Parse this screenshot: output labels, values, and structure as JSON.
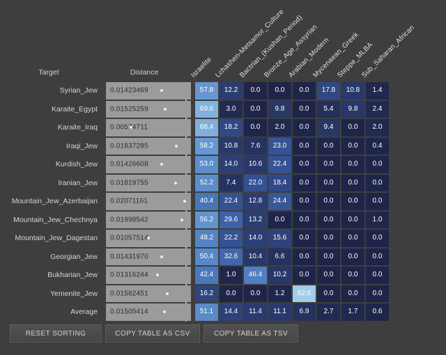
{
  "header": {
    "target": "Target",
    "distance": "Distance"
  },
  "buttons": [
    {
      "label": "RESET SORTING"
    },
    {
      "label": "COPY TABLE AS CSV"
    },
    {
      "label": "COPY TABLE AS TSV"
    }
  ],
  "colors": {
    "background": "#3e3e3e",
    "distance_bar": "#9b9b9b",
    "distance_text": "#2d2d2d",
    "row_label_text": "#d4d4d4",
    "cell_text": "#ffffff",
    "header_text": "#e0e0e0",
    "marker_line": "#d9d9d9"
  },
  "chart_data": {
    "type": "heatmap",
    "title": "",
    "columns": [
      "Israelite",
      "Lchashen-Metsamor_Culture",
      "Bactrian_(Kushan_Period)",
      "Bronze_Age_Assyrian",
      "Arabian_Modern",
      "Mycenaean_Greek",
      "Steppe_MLBA",
      "Sub_Saharan_African"
    ],
    "rows": [
      "Syrian_Jew",
      "Karaite_Egypt",
      "Karaite_Iraq",
      "Iraqi_Jew",
      "Kurdish_Jew",
      "Iranian_Jew",
      "Mountain_Jew_Azerbaijan",
      "Mountain_Jew_Chechnya",
      "Mountain_Jew_Dagestan",
      "Georgian_Jew",
      "Bukharian_Jew",
      "Yemenite_Jew",
      "Average"
    ],
    "distances": [
      "0.01423469",
      "0.01525259",
      "0.00574711",
      "0.01837285",
      "0.01426608",
      "0.01819755",
      "0.02071161",
      "0.01998542",
      "0.01057514",
      "0.01431970",
      "0.01316244",
      "0.01582451",
      "0.01505414"
    ],
    "values": [
      [
        57.8,
        12.2,
        0.0,
        0.0,
        0.0,
        17.8,
        10.8,
        1.4
      ],
      [
        69.6,
        3.0,
        0.0,
        9.8,
        0.0,
        5.4,
        9.8,
        2.4
      ],
      [
        68.4,
        18.2,
        0.0,
        2.0,
        0.0,
        9.4,
        0.0,
        2.0
      ],
      [
        58.2,
        10.8,
        7.6,
        23.0,
        0.0,
        0.0,
        0.0,
        0.4
      ],
      [
        53.0,
        14.0,
        10.6,
        22.4,
        0.0,
        0.0,
        0.0,
        0.0
      ],
      [
        52.2,
        7.4,
        22.0,
        18.4,
        0.0,
        0.0,
        0.0,
        0.0
      ],
      [
        40.4,
        22.4,
        12.8,
        24.4,
        0.0,
        0.0,
        0.0,
        0.0
      ],
      [
        56.2,
        29.6,
        13.2,
        0.0,
        0.0,
        0.0,
        0.0,
        1.0
      ],
      [
        48.2,
        22.2,
        14.0,
        15.6,
        0.0,
        0.0,
        0.0,
        0.0
      ],
      [
        50.4,
        32.6,
        10.4,
        6.6,
        0.0,
        0.0,
        0.0,
        0.0
      ],
      [
        42.4,
        1.0,
        46.4,
        10.2,
        0.0,
        0.0,
        0.0,
        0.0
      ],
      [
        16.2,
        0.0,
        0.0,
        1.2,
        82.6,
        0.0,
        0.0,
        0.0
      ],
      [
        51.1,
        14.4,
        11.4,
        11.1,
        6.9,
        2.7,
        1.7,
        0.6
      ]
    ],
    "value_range": [
      0,
      100
    ],
    "colorscale": [
      [
        0,
        "#1f2548"
      ],
      [
        10,
        "#283769"
      ],
      [
        20,
        "#324d8c"
      ],
      [
        30,
        "#3e63a8"
      ],
      [
        45,
        "#4e7dc0"
      ],
      [
        60,
        "#6c9cd3"
      ],
      [
        75,
        "#91bee4"
      ],
      [
        90,
        "#b0daf1"
      ],
      [
        100,
        "#c8ebf8"
      ]
    ],
    "legend_position": "none",
    "grid": false
  }
}
